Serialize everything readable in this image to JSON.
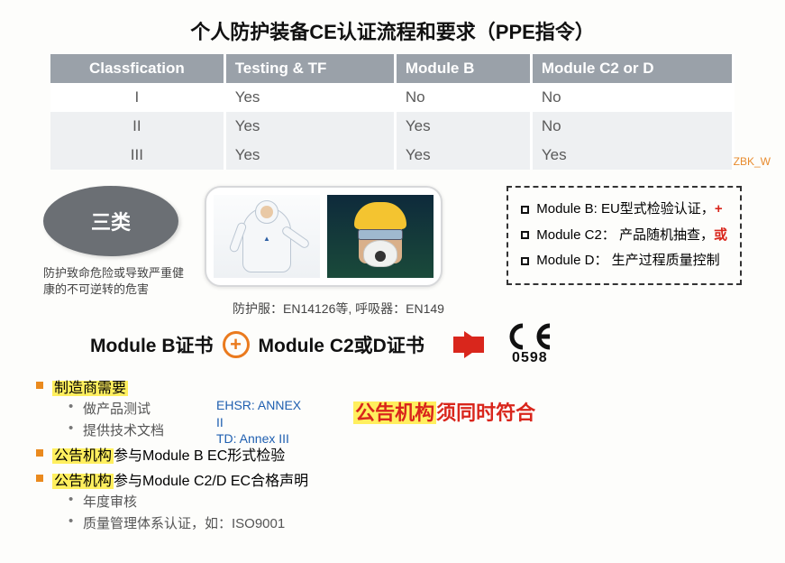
{
  "title": "个人防护装备CE认证流程和要求（PPE指令）",
  "table": {
    "headers": [
      "Classfication",
      "Testing & TF",
      "Module B",
      "Module C2 or D"
    ],
    "rows": [
      [
        "I",
        "Yes",
        "No",
        "No"
      ],
      [
        "II",
        "Yes",
        "Yes",
        "No"
      ],
      [
        "III",
        "Yes",
        "Yes",
        "Yes"
      ]
    ],
    "header_bg": "#9aa1a9",
    "alt_row_bg": "#eef0f2"
  },
  "watermark": "ZBK_W",
  "pill": {
    "label": "三类",
    "caption": "防护致命危险或导致严重健康的不可逆转的危害",
    "bg": "#6b6f74"
  },
  "photos": {
    "helmet_color": "#f4c430"
  },
  "module_box": {
    "items": [
      {
        "label": "Module B:",
        "desc": "EU型式检验认证，",
        "suffix": "+",
        "suffix_color": "#d9261c"
      },
      {
        "label": "Module C2：",
        "desc": "产品随机抽查，",
        "suffix": "或",
        "suffix_color": "#d9261c"
      },
      {
        "label": "Module D：",
        "desc": "生产过程质量控制",
        "suffix": "",
        "suffix_color": "#000"
      }
    ]
  },
  "standards_line": "防护服：EN14126等,  呼吸器：EN149",
  "cert": {
    "left": "Module B证书",
    "right": "Module C2或D证书",
    "plus_color": "#ea7a1e",
    "arrow_color": "#d9261c",
    "ce_number": "0598"
  },
  "bullets": {
    "b1_color": "#ea8a1e",
    "highlight_bg": "#ffef5e",
    "items": [
      {
        "pre_hl": "制造商需要",
        "post": "",
        "sub": [
          {
            "text": "做产品测试",
            "blue": false
          },
          {
            "text": "提供技术文档",
            "blue": true
          }
        ],
        "annex": {
          "line1": "EHSR: ANNEX II",
          "line2": "TD: Annex III",
          "color": "#1f5fb0"
        }
      },
      {
        "pre_hl": "公告机构",
        "post": "参与Module B EC形式检验",
        "sub": []
      },
      {
        "pre_hl": "公告机构",
        "post": "参与Module C2/D  EC合格声明",
        "sub": [
          {
            "text": "年度审核",
            "blue": false
          },
          {
            "text": "质量管理体系认证，如：ISO9001",
            "blue": false
          }
        ]
      }
    ]
  },
  "notice_right": {
    "hl": "公告机构",
    "red": "须同时符合"
  }
}
